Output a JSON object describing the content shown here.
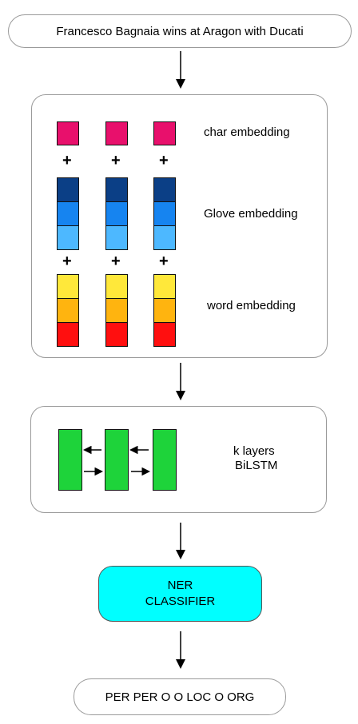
{
  "input_sentence": "Francesco Bagnaia wins at Aragon with Ducati",
  "embedding_panel": {
    "char_label": "char embedding",
    "glove_label": "Glove embedding",
    "word_label": "word embedding",
    "plus": "+"
  },
  "lstm_panel": {
    "label_line1": "k layers",
    "label_line2": "BiLSTM"
  },
  "classifier": {
    "line1": "NER",
    "line2": "CLASSIFIER"
  },
  "output_tags": "PER PER O O LOC O ORG",
  "colors": {
    "char": "#e8106c",
    "glove_dark": "#0b3f86",
    "glove_mid": "#1684f0",
    "glove_light": "#4db8ff",
    "word_yellow": "#ffe83a",
    "word_orange": "#ffb40f",
    "word_red": "#ff0f0f",
    "lstm": "#1ed33a",
    "classifier": "#00ffff"
  }
}
